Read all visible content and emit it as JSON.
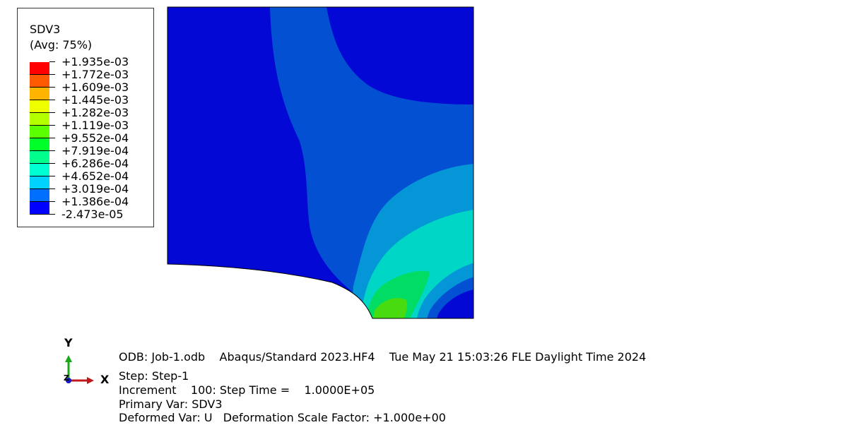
{
  "legend": {
    "variable": "SDV3",
    "averaging": "(Avg: 75%)",
    "levels": [
      {
        "label": "+1.935e-03",
        "color": "#ff0000"
      },
      {
        "label": "+1.772e-03",
        "color": "#ff5a00"
      },
      {
        "label": "+1.609e-03",
        "color": "#ffb400"
      },
      {
        "label": "+1.445e-03",
        "color": "#f0ff00"
      },
      {
        "label": "+1.282e-03",
        "color": "#b4ff00"
      },
      {
        "label": "+1.119e-03",
        "color": "#5aff00"
      },
      {
        "label": "+9.552e-04",
        "color": "#00ff28"
      },
      {
        "label": "+7.919e-04",
        "color": "#00ff8c"
      },
      {
        "label": "+6.286e-04",
        "color": "#00ffd2"
      },
      {
        "label": "+4.652e-04",
        "color": "#00d2ff"
      },
      {
        "label": "+3.019e-04",
        "color": "#006eff"
      },
      {
        "label": "+1.386e-04",
        "color": "#0000ff"
      },
      {
        "label": "-2.473e-05",
        "color": null
      }
    ]
  },
  "contour_colors": {
    "background_edge": "#000000",
    "deep_blue": "#0008d6",
    "blue": "#0452d3",
    "light_blue": "#0497d6",
    "cyan": "#00d8c8",
    "green": "#00e070",
    "green2": "#30e030",
    "lime": "#7be000"
  },
  "triad": {
    "y_label": "Y",
    "x_label": "X",
    "z_label": "Z",
    "y_color": "#18a818",
    "x_color": "#c01818",
    "z_color": "#1818c0"
  },
  "info": {
    "odb_line": "ODB: Job-1.odb    Abaqus/Standard 2023.HF4    Tue May 21 15:03:26 FLE Daylight Time 2024",
    "step_line": "Step: Step-1",
    "increment_line": "Increment    100: Step Time =    1.0000E+05",
    "primary_line": "Primary Var: SDV3",
    "deformed_line": "Deformed Var: U   Deformation Scale Factor: +1.000e+00"
  }
}
